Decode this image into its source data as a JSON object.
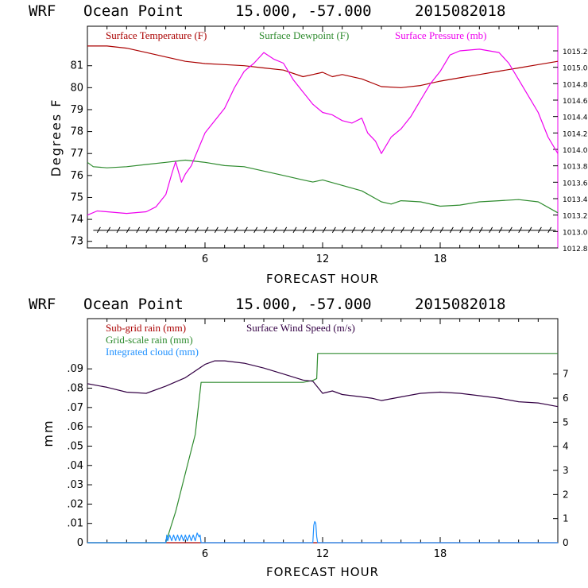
{
  "colors": {
    "temperature": "#aa0000",
    "dewpoint": "#2e8b2e",
    "pressure": "#ee00ee",
    "subgrid": "#aa0000",
    "gridscale": "#2e8b2e",
    "cloud": "#1e90ff",
    "wind": "#330044",
    "axis": "#000000"
  },
  "chart_data": [
    {
      "type": "line",
      "header": {
        "model": "WRF",
        "site": "Ocean Point",
        "coords": "15.000, -57.000",
        "run": "2015082018"
      },
      "xlabel": "FORECAST HOUR",
      "ylabel": "Degrees F",
      "x_range": [
        0,
        24
      ],
      "x_ticks": [
        "6",
        "12",
        "18"
      ],
      "y_range": [
        72.7,
        82.8
      ],
      "y_ticks": [
        "73",
        "74",
        "75",
        "76",
        "77",
        "78",
        "79",
        "80",
        "81"
      ],
      "y2_range": [
        1012.8,
        1015.5
      ],
      "y2_ticks": [
        "1012.8",
        "1013.0",
        "1013.2",
        "1013.4",
        "1013.6",
        "1013.8",
        "1014.0",
        "1014.2",
        "1014.4",
        "1014.6",
        "1014.8",
        "1015.0",
        "1015.2"
      ],
      "wind_barbs_row_y": 73.5,
      "series": [
        {
          "name": "Surface Temperature (F)",
          "axis": "left",
          "x": [
            0,
            1,
            2,
            3,
            4,
            5,
            6,
            7,
            8,
            9,
            10,
            11,
            11.5,
            12,
            12.5,
            13,
            14,
            15,
            16,
            17,
            18,
            19,
            20,
            21,
            22,
            23,
            24
          ],
          "values": [
            81.9,
            81.9,
            81.8,
            81.6,
            81.4,
            81.2,
            81.1,
            81.05,
            81.0,
            80.9,
            80.8,
            80.5,
            80.6,
            80.7,
            80.5,
            80.6,
            80.4,
            80.05,
            80.0,
            80.1,
            80.3,
            80.45,
            80.6,
            80.75,
            80.9,
            81.05,
            81.2
          ]
        },
        {
          "name": "Surface Dewpoint (F)",
          "axis": "left",
          "x": [
            0,
            0.3,
            1,
            2,
            3,
            4,
            5,
            6,
            7,
            8,
            9,
            10,
            11,
            11.5,
            12,
            13,
            14,
            15,
            15.5,
            16,
            17,
            18,
            19,
            20,
            21,
            22,
            23,
            24
          ],
          "values": [
            76.6,
            76.4,
            76.35,
            76.4,
            76.5,
            76.6,
            76.7,
            76.6,
            76.45,
            76.4,
            76.2,
            76.0,
            75.8,
            75.7,
            75.8,
            75.55,
            75.3,
            74.8,
            74.7,
            74.85,
            74.8,
            74.6,
            74.65,
            74.8,
            74.85,
            74.9,
            74.8,
            74.3
          ]
        },
        {
          "name": "Surface Pressure (mb)",
          "axis": "right",
          "x": [
            0,
            0.5,
            1,
            2,
            3,
            3.5,
            4,
            4.3,
            4.5,
            4.8,
            5,
            5.3,
            6,
            7,
            7.5,
            8,
            8.5,
            9,
            9.5,
            10,
            10.5,
            11,
            11.5,
            12,
            12.5,
            13,
            13.5,
            14,
            14.3,
            14.7,
            15,
            15.5,
            16,
            16.5,
            17,
            17.5,
            18,
            18.5,
            19,
            20,
            21,
            21.5,
            22,
            22.5,
            23,
            23.5,
            24
          ],
          "values": [
            1013.2,
            1013.25,
            1013.24,
            1013.22,
            1013.24,
            1013.3,
            1013.45,
            1013.7,
            1013.85,
            1013.6,
            1013.7,
            1013.8,
            1014.2,
            1014.5,
            1014.75,
            1014.95,
            1015.05,
            1015.18,
            1015.1,
            1015.05,
            1014.85,
            1014.7,
            1014.55,
            1014.45,
            1014.42,
            1014.35,
            1014.32,
            1014.38,
            1014.2,
            1014.1,
            1013.95,
            1014.15,
            1014.25,
            1014.4,
            1014.6,
            1014.8,
            1014.95,
            1015.15,
            1015.2,
            1015.22,
            1015.18,
            1015.05,
            1014.85,
            1014.65,
            1014.45,
            1014.15,
            1013.95
          ]
        }
      ]
    },
    {
      "type": "line",
      "header": {
        "model": "WRF",
        "site": "Ocean Point",
        "coords": "15.000, -57.000",
        "run": "2015082018"
      },
      "xlabel": "FORECAST HOUR",
      "ylabel": "mm",
      "x_range": [
        0,
        24
      ],
      "x_ticks": [
        "6",
        "12",
        "18"
      ],
      "y_range": [
        0,
        0.116
      ],
      "y_ticks": [
        "0",
        ".01",
        ".02",
        ".03",
        ".04",
        ".05",
        ".06",
        ".07",
        ".08",
        ".09"
      ],
      "y2_range": [
        0,
        9.3
      ],
      "y2_ticks": [
        "0",
        "1",
        "2",
        "3",
        "4",
        "5",
        "6",
        "7"
      ],
      "series": [
        {
          "name": "Sub-grid rain (mm)",
          "axis": "left",
          "x": [
            0,
            24
          ],
          "values": [
            0,
            0
          ]
        },
        {
          "name": "Grid-scale rain (mm)",
          "axis": "left",
          "x": [
            0,
            4.0,
            4.5,
            5.0,
            5.5,
            5.8,
            7,
            8,
            9,
            10,
            11,
            11.5,
            11.7,
            11.75,
            12,
            18,
            24
          ],
          "values": [
            0,
            0,
            0.016,
            0.036,
            0.056,
            0.083,
            0.083,
            0.083,
            0.083,
            0.083,
            0.083,
            0.084,
            0.085,
            0.098,
            0.098,
            0.098,
            0.098
          ]
        },
        {
          "name": "Integrated cloud (mm)",
          "axis": "left",
          "x": [
            0,
            4.0,
            4.05,
            4.1,
            4.2,
            4.3,
            4.4,
            4.5,
            4.6,
            4.7,
            4.8,
            4.9,
            5.0,
            5.1,
            5.2,
            5.3,
            5.4,
            5.5,
            5.6,
            5.7,
            5.75,
            5.8,
            11.5,
            11.55,
            11.6,
            11.65,
            11.7,
            11.75,
            24
          ],
          "values": [
            0,
            0,
            0.004,
            0.001,
            0.004,
            0.001,
            0.004,
            0.001,
            0.004,
            0.001,
            0.004,
            0.001,
            0.004,
            0.001,
            0.004,
            0.001,
            0.004,
            0.001,
            0.005,
            0.003,
            0.004,
            0,
            0,
            0.009,
            0.011,
            0.01,
            0.003,
            0,
            0
          ]
        },
        {
          "name": "Surface Wind Speed (m/s)",
          "axis": "right",
          "x": [
            0,
            1,
            2,
            3,
            4,
            5,
            6,
            6.5,
            7,
            8,
            9,
            10,
            11,
            11.5,
            12,
            12.5,
            13,
            14,
            14.5,
            15,
            16,
            17,
            18,
            19,
            20,
            21,
            22,
            23,
            24
          ],
          "values": [
            6.6,
            6.45,
            6.25,
            6.2,
            6.5,
            6.85,
            7.4,
            7.55,
            7.55,
            7.45,
            7.25,
            7.0,
            6.75,
            6.7,
            6.2,
            6.3,
            6.15,
            6.05,
            6.0,
            5.9,
            6.05,
            6.2,
            6.25,
            6.2,
            6.1,
            6.0,
            5.85,
            5.8,
            5.65
          ]
        }
      ]
    }
  ]
}
